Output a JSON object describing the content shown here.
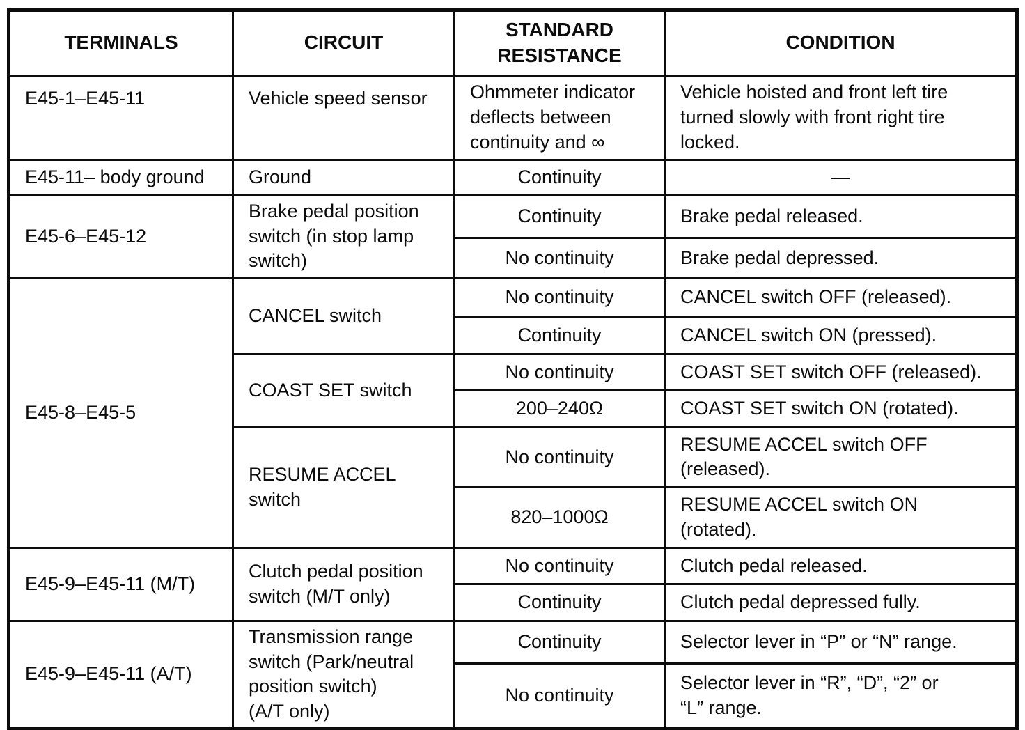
{
  "table": {
    "headers": {
      "terminals": "TERMINALS",
      "circuit": "CIRCUIT",
      "resistance": "STANDARD\nRESISTANCE",
      "condition": "CONDITION"
    },
    "groups": [
      {
        "terminals": "E45-1–E45-11",
        "circuits": [
          {
            "name": "Vehicle speed sensor",
            "checks": [
              {
                "resistance": "Ohmmeter indicator\ndeflects between\ncontinuity and ∞",
                "condition": "Vehicle hoisted and front left tire\nturned slowly with front right tire\nlocked."
              }
            ]
          }
        ]
      },
      {
        "terminals": "E45-11– body ground",
        "circuits": [
          {
            "name": "Ground",
            "checks": [
              {
                "resistance": "Continuity",
                "condition": "—"
              }
            ]
          }
        ]
      },
      {
        "terminals": "E45-6–E45-12",
        "circuits": [
          {
            "name": "Brake pedal position\nswitch (in stop lamp\nswitch)",
            "checks": [
              {
                "resistance": "Continuity",
                "condition": "Brake pedal released."
              },
              {
                "resistance": "No continuity",
                "condition": "Brake pedal depressed."
              }
            ]
          }
        ]
      },
      {
        "terminals": "E45-8–E45-5",
        "circuits": [
          {
            "name": "CANCEL switch",
            "checks": [
              {
                "resistance": "No continuity",
                "condition": "CANCEL switch OFF (released)."
              },
              {
                "resistance": "Continuity",
                "condition": "CANCEL switch ON (pressed)."
              }
            ]
          },
          {
            "name": "COAST SET switch",
            "checks": [
              {
                "resistance": "No continuity",
                "condition": "COAST SET switch OFF (released)."
              },
              {
                "resistance": "200–240Ω",
                "condition": "COAST SET switch ON (rotated)."
              }
            ]
          },
          {
            "name": "RESUME ACCEL\nswitch",
            "checks": [
              {
                "resistance": "No continuity",
                "condition": "RESUME ACCEL switch OFF\n(released)."
              },
              {
                "resistance": "820–1000Ω",
                "condition": "RESUME ACCEL switch ON\n(rotated)."
              }
            ]
          }
        ]
      },
      {
        "terminals": "E45-9–E45-11 (M/T)",
        "circuits": [
          {
            "name": "Clutch pedal position\nswitch (M/T only)",
            "checks": [
              {
                "resistance": "No continuity",
                "condition": "Clutch pedal released."
              },
              {
                "resistance": "Continuity",
                "condition": "Clutch pedal depressed fully."
              }
            ]
          }
        ]
      },
      {
        "terminals": "E45-9–E45-11 (A/T)",
        "circuits": [
          {
            "name": "Transmission range\nswitch (Park/neutral\nposition switch)\n(A/T only)",
            "checks": [
              {
                "resistance": "Continuity",
                "condition": "Selector lever in “P” or “N” range."
              },
              {
                "resistance": "No continuity",
                "condition": "Selector lever in “R”, “D”, “2” or\n“L” range."
              }
            ]
          }
        ]
      }
    ]
  }
}
